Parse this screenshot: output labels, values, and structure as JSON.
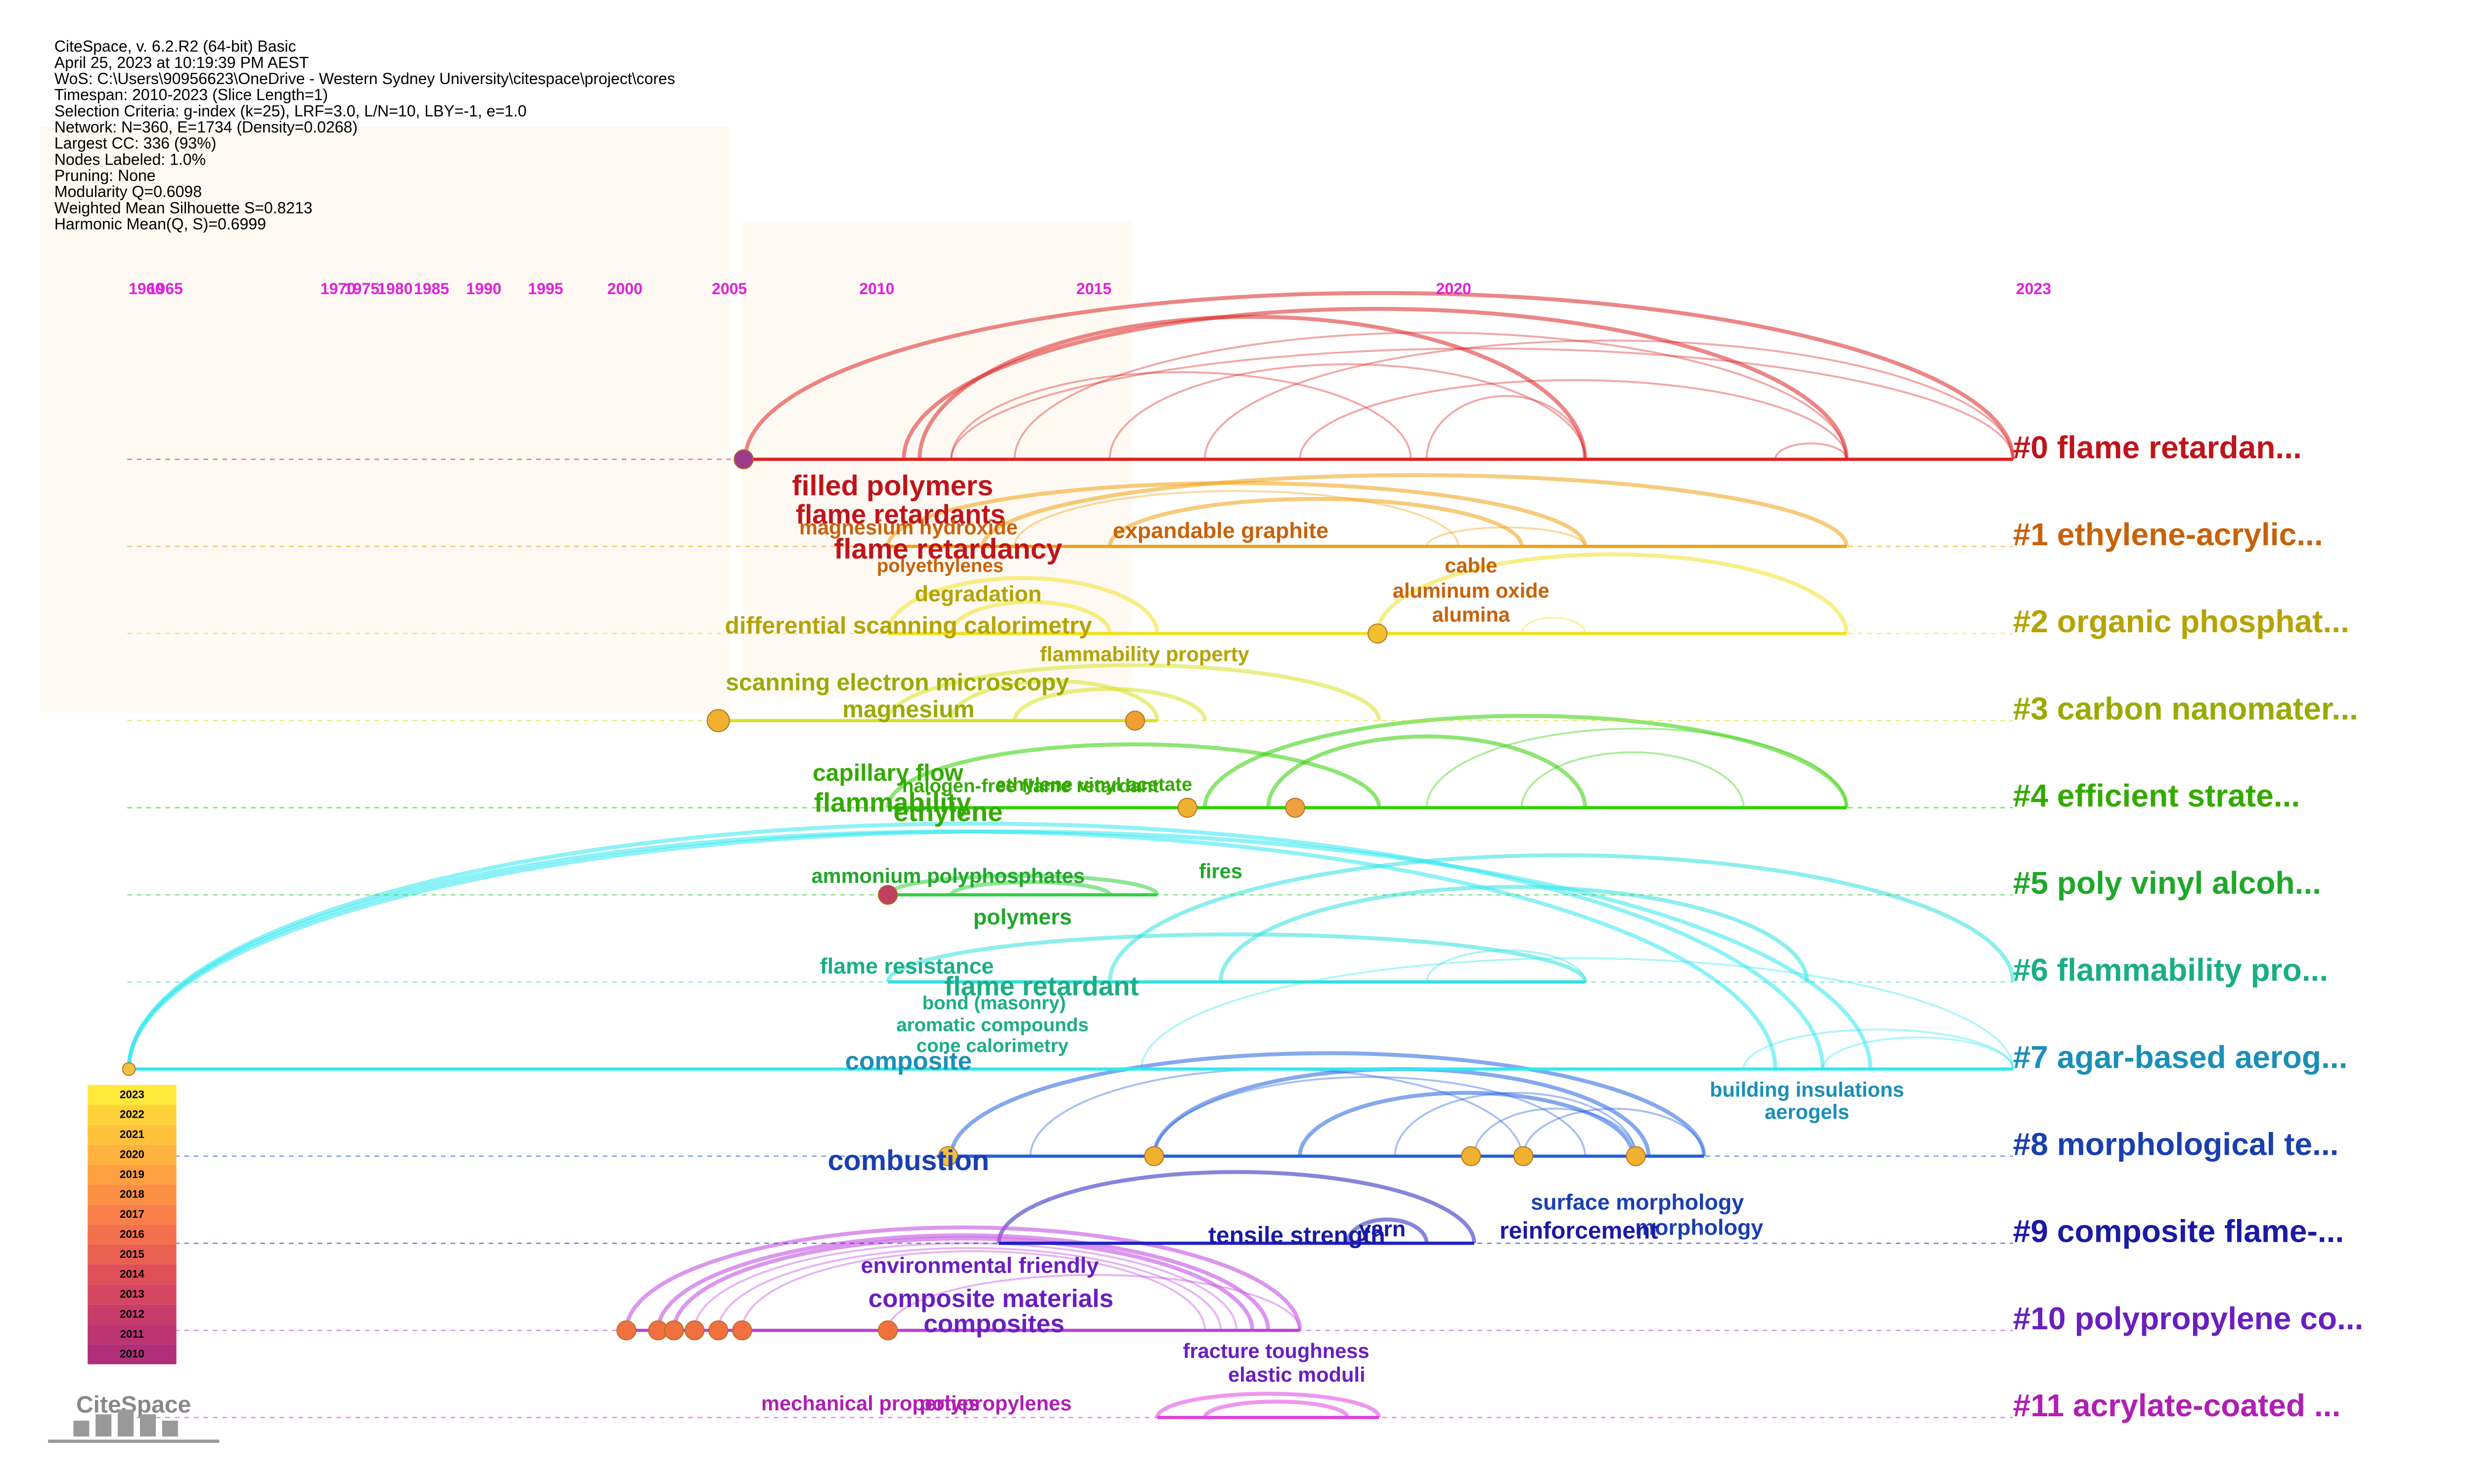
{
  "header": {
    "lines": [
      "CiteSpace, v. 6.2.R2 (64-bit) Basic",
      "April 25, 2023 at 10:19:39 PM AEST",
      "WoS: C:\\Users\\90956623\\OneDrive - Western Sydney University\\citespace\\project\\cores",
      "Timespan: 2010-2023 (Slice Length=1)",
      "Selection Criteria: g-index (k=25), LRF=3.0, L/N=10, LBY=-1, e=1.0",
      "Network: N=360, E=1734 (Density=0.0268)",
      "Largest CC: 336 (93%)",
      "Nodes Labeled: 1.0%",
      "Pruning: None",
      "Modularity Q=0.6098",
      "Weighted Mean Silhouette S=0.8213",
      "Harmonic Mean(Q, S)=0.6999"
    ]
  },
  "timeline": {
    "years": [
      "1960",
      "1965",
      "1970",
      "1975",
      "1980",
      "1985",
      "1990",
      "1995",
      "2000",
      "2005",
      "2010",
      "2015",
      "2020",
      "2023"
    ]
  },
  "clusters": [
    {
      "label": "#0 flame retardan...",
      "keywords": [
        "filled polymers",
        "flame retardants",
        "flame retardancy"
      ]
    },
    {
      "label": "#1 ethylene-acrylic...",
      "keywords": [
        "magnesium hydroxide",
        "expandable graphite",
        "polyethylenes",
        "cable",
        "aluminum oxide",
        "alumina"
      ]
    },
    {
      "label": "#2 organic phosphat...",
      "keywords": [
        "degradation",
        "differential scanning calorimetry",
        "flammability property"
      ]
    },
    {
      "label": "#3 carbon nanomater...",
      "keywords": [
        "scanning electron microscopy",
        "magnesium"
      ]
    },
    {
      "label": "#4 efficient strate...",
      "keywords": [
        "capillary flow",
        "halogen-free flame retardant",
        "ethylene vinyl acetate",
        "flammability",
        "ethylene"
      ]
    },
    {
      "label": "#5 poly vinyl alcoh...",
      "keywords": [
        "ammonium polyphosphates",
        "fires",
        "polymers"
      ]
    },
    {
      "label": "#6 flammability pro...",
      "keywords": [
        "flame resistance",
        "flame retardant",
        "bond (masonry)",
        "aromatic compounds",
        "cone calorimetry"
      ]
    },
    {
      "label": "#7 agar-based aerog...",
      "keywords": [
        "composite",
        "building insulations",
        "aerogels"
      ]
    },
    {
      "label": "#8 morphological te...",
      "keywords": [
        "combustion",
        "surface morphology",
        "morphology"
      ]
    },
    {
      "label": "#9 composite flame-...",
      "keywords": [
        "tensile strength",
        "yarn",
        "reinforcement"
      ]
    },
    {
      "label": "#10 polypropylene co...",
      "keywords": [
        "environmental friendly",
        "composite materials",
        "composites",
        "fracture toughness",
        "elastic moduli"
      ]
    },
    {
      "label": "#11 acrylate-coated ...",
      "keywords": [
        "mechanical properties",
        "polypropylenes"
      ]
    }
  ],
  "legend": {
    "years": [
      "2023",
      "2022",
      "2021",
      "2020",
      "2019",
      "2018",
      "2017",
      "2016",
      "2015",
      "2014",
      "2013",
      "2012",
      "2011",
      "2010"
    ]
  },
  "logo": "CiteSpace"
}
